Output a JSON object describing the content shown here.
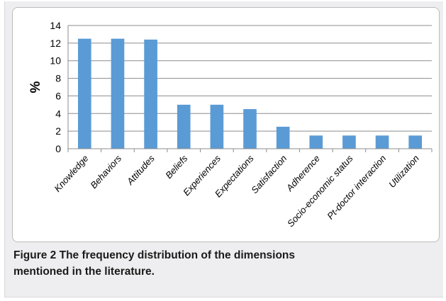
{
  "caption": {
    "label": "Figure 2",
    "text": "The frequency distribution of the dimensions mentioned in the literature."
  },
  "chart_data": {
    "type": "bar",
    "categories": [
      "Knowledge",
      "Behaviors",
      "Attitudes",
      "Beliefs",
      "Experiences",
      "Expectations",
      "Satisfaction",
      "Adherence",
      "Socio-economic status",
      "Pt-doctor interaction",
      "Utilization"
    ],
    "values": [
      12.5,
      12.5,
      12.4,
      5,
      5,
      4.5,
      2.5,
      1.5,
      1.5,
      1.5,
      1.5
    ],
    "ylabel": "%",
    "xlabel": "",
    "ylim": [
      0,
      14
    ],
    "yticks": [
      0,
      2,
      4,
      6,
      8,
      10,
      12,
      14
    ],
    "grid": true,
    "legend": "none",
    "colors": {
      "bar": "#5b9bd5",
      "grid": "#8c8c8c",
      "axis": "#8c8c8c"
    }
  }
}
